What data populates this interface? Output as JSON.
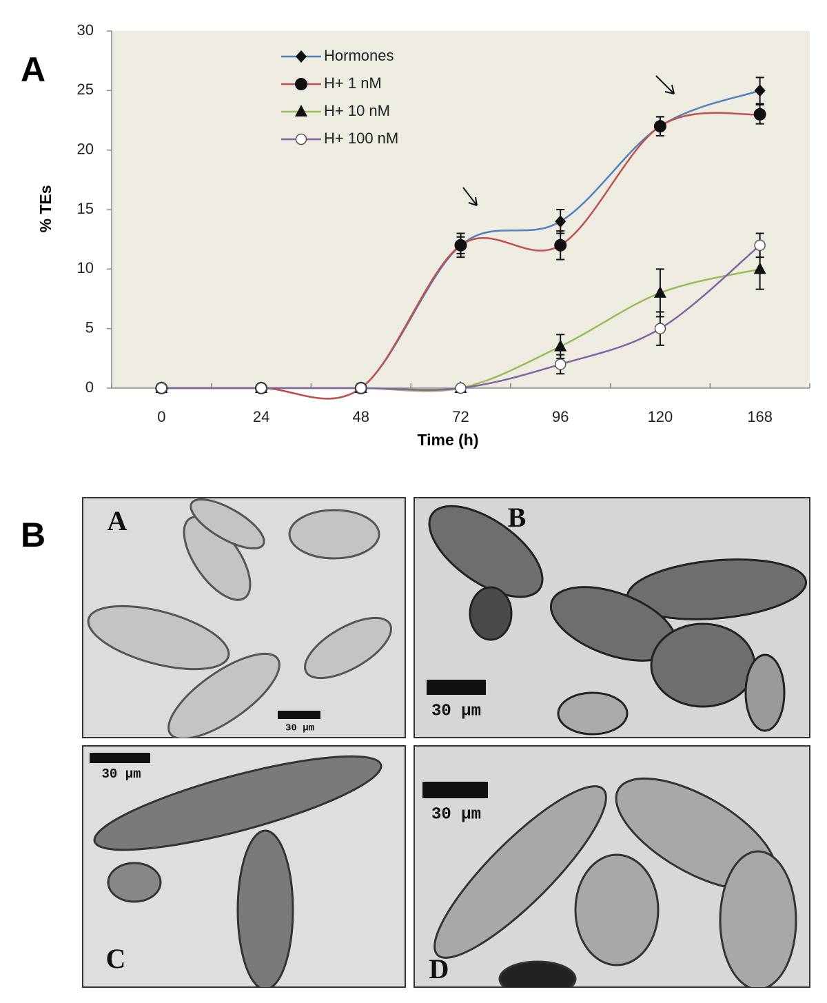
{
  "chart_data": {
    "type": "line",
    "categories": [
      "0",
      "24",
      "48",
      "72",
      "96",
      "120",
      "168"
    ],
    "xlabel": "Time (h)",
    "ylabel": "% TEs",
    "ylim": [
      0,
      30
    ],
    "yticks": [
      0,
      5,
      10,
      15,
      20,
      25,
      30
    ],
    "legend": "upper left",
    "series": [
      {
        "name": "Hormones",
        "color": "#4f81bd",
        "marker": "diamond",
        "values": [
          0,
          0,
          0,
          12,
          14,
          22,
          25
        ],
        "errors": [
          0,
          0,
          0,
          1,
          1,
          0.8,
          1.1
        ]
      },
      {
        "name": "H+ 1 nM",
        "color": "#c0504d",
        "marker": "circle",
        "values": [
          0,
          0,
          0,
          12,
          12,
          22,
          23
        ],
        "errors": [
          0,
          0,
          0,
          0.7,
          1.2,
          0.8,
          0.8
        ]
      },
      {
        "name": "H+ 10 nM",
        "color": "#9bbb59",
        "marker": "triangle",
        "values": [
          0,
          0,
          0,
          0,
          3.5,
          8,
          10
        ],
        "errors": [
          0,
          0,
          0,
          0,
          1,
          2,
          1.7
        ]
      },
      {
        "name": "H+ 100 nM",
        "color": "#8064a2",
        "marker": "open-circle",
        "values": [
          0,
          0,
          0,
          0,
          2,
          5,
          12
        ],
        "errors": [
          0,
          0,
          0,
          0,
          0.8,
          1.4,
          1
        ]
      }
    ]
  },
  "panel_labels": [
    "A",
    "B"
  ],
  "micrographs": [
    {
      "label": "A",
      "scale": "30 µm"
    },
    {
      "label": "B",
      "scale": "30 µm"
    },
    {
      "label": "C",
      "scale": "30 µm"
    },
    {
      "label": "D",
      "scale": "30 µm"
    }
  ]
}
